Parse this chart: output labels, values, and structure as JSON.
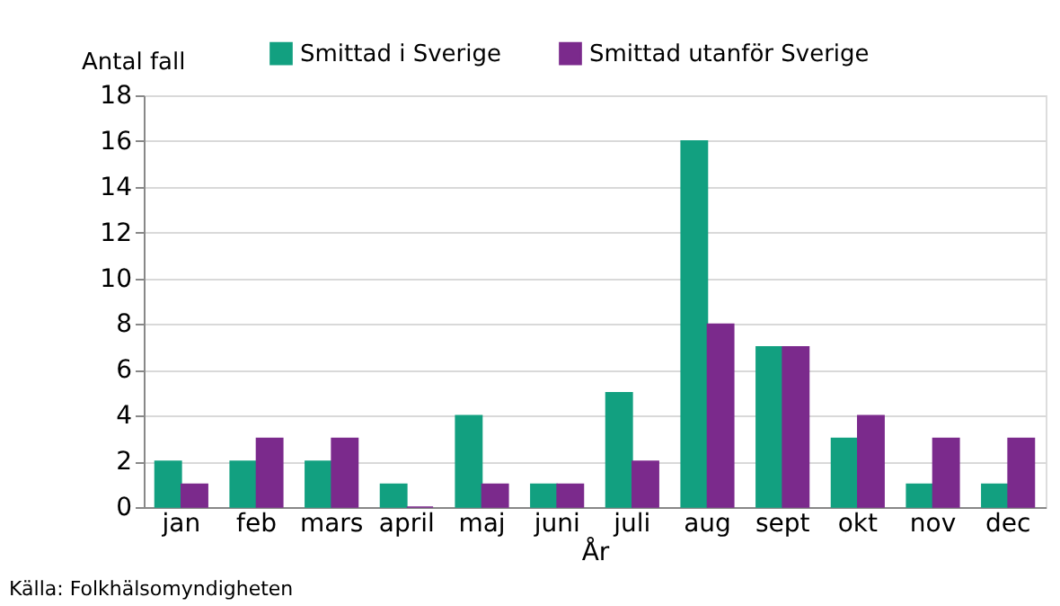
{
  "chart_data": {
    "type": "bar",
    "ylabel": "Antal fall",
    "xlabel": "År",
    "categories": [
      "jan",
      "feb",
      "mars",
      "april",
      "maj",
      "juni",
      "juli",
      "aug",
      "sept",
      "okt",
      "nov",
      "dec"
    ],
    "series": [
      {
        "name": "Smittad i Sverige",
        "color": "#12a080",
        "values": [
          2,
          2,
          2,
          1,
          4,
          1,
          5,
          16,
          7,
          3,
          1,
          1
        ]
      },
      {
        "name": "Smittad utanför Sverige",
        "color": "#7b2a8c",
        "values": [
          1,
          3,
          3,
          0,
          1,
          1,
          2,
          8,
          7,
          4,
          3,
          3
        ]
      }
    ],
    "ylim": [
      0,
      18
    ],
    "yticks": [
      0,
      2,
      4,
      6,
      8,
      10,
      12,
      14,
      16,
      18
    ],
    "grid": "y",
    "legend": "top",
    "annotations": [
      "Källa: Folkhälsomyndigheten"
    ]
  }
}
